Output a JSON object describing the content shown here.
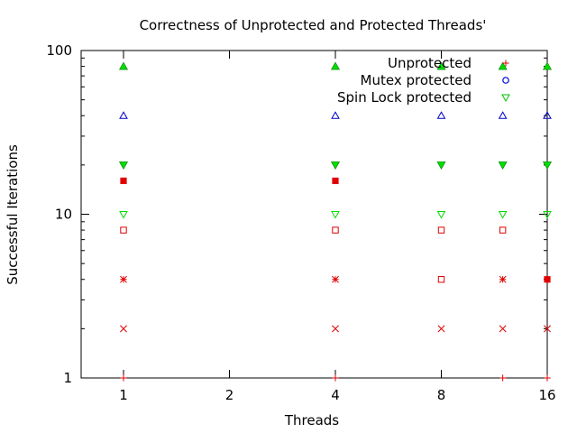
{
  "chart_data": {
    "type": "scatter",
    "title": "Correctness of Unprotected and Protected Threads'",
    "xlabel": "Threads",
    "ylabel": "Successful Iterations",
    "y_scale": "log",
    "ylim": [
      1,
      100
    ],
    "y_ticks": [
      {
        "value": 1,
        "label": "1"
      },
      {
        "value": 10,
        "label": "10"
      },
      {
        "value": 100,
        "label": "100"
      }
    ],
    "xlim": [
      0.6,
      5.0
    ],
    "x_ticks": [
      {
        "pos": 1,
        "label": "1"
      },
      {
        "pos": 2,
        "label": "2"
      },
      {
        "pos": 3,
        "label": "4"
      },
      {
        "pos": 4,
        "label": "8"
      },
      {
        "pos": 5,
        "label": "16"
      }
    ],
    "grid": false,
    "legend_position": "top-right",
    "legend": [
      {
        "label": "Unprotected",
        "marker": "plus",
        "color": "#e00000"
      },
      {
        "label": "Mutex protected",
        "marker": "circle",
        "color": "#0000e0"
      },
      {
        "label": "Spin Lock protected",
        "marker": "triangle-down",
        "color": "#00c000"
      }
    ],
    "points": [
      {
        "x": 1,
        "y": 80,
        "marker": "filled-triangle",
        "color": "#00dd00"
      },
      {
        "x": 1,
        "y": 40,
        "marker": "triangle",
        "color": "#0000cc"
      },
      {
        "x": 1,
        "y": 20,
        "marker": "filled-triangle-down",
        "color": "#00dd00"
      },
      {
        "x": 1,
        "y": 16,
        "marker": "filled-square",
        "color": "#e00000"
      },
      {
        "x": 1,
        "y": 10,
        "marker": "triangle-down",
        "color": "#00dd00"
      },
      {
        "x": 1,
        "y": 8,
        "marker": "square",
        "color": "#e00000"
      },
      {
        "x": 1,
        "y": 4,
        "marker": "star",
        "color": "#e00000"
      },
      {
        "x": 1,
        "y": 2,
        "marker": "cross",
        "color": "#e00000"
      },
      {
        "x": 1,
        "y": 1,
        "marker": "plus",
        "color": "#e00000"
      },
      {
        "x": 3,
        "y": 80,
        "marker": "filled-triangle",
        "color": "#00dd00"
      },
      {
        "x": 3,
        "y": 40,
        "marker": "triangle",
        "color": "#0000cc"
      },
      {
        "x": 3,
        "y": 20,
        "marker": "filled-triangle-down",
        "color": "#00dd00"
      },
      {
        "x": 3,
        "y": 16,
        "marker": "filled-square",
        "color": "#e00000"
      },
      {
        "x": 3,
        "y": 10,
        "marker": "triangle-down",
        "color": "#00dd00"
      },
      {
        "x": 3,
        "y": 8,
        "marker": "square",
        "color": "#e00000"
      },
      {
        "x": 3,
        "y": 4,
        "marker": "star",
        "color": "#e00000"
      },
      {
        "x": 3,
        "y": 2,
        "marker": "cross",
        "color": "#e00000"
      },
      {
        "x": 3,
        "y": 1,
        "marker": "plus",
        "color": "#e00000"
      },
      {
        "x": 4,
        "y": 80,
        "marker": "filled-triangle",
        "color": "#00dd00"
      },
      {
        "x": 4,
        "y": 40,
        "marker": "triangle",
        "color": "#0000cc"
      },
      {
        "x": 4,
        "y": 20,
        "marker": "filled-triangle-down",
        "color": "#00dd00"
      },
      {
        "x": 4,
        "y": 10,
        "marker": "triangle-down",
        "color": "#00dd00"
      },
      {
        "x": 4,
        "y": 8,
        "marker": "square",
        "color": "#e00000"
      },
      {
        "x": 4,
        "y": 4,
        "marker": "square",
        "color": "#e00000"
      },
      {
        "x": 4,
        "y": 2,
        "marker": "cross",
        "color": "#e00000"
      },
      {
        "x": 4.58,
        "y": 80,
        "marker": "filled-triangle",
        "color": "#00dd00"
      },
      {
        "x": 4.58,
        "y": 40,
        "marker": "triangle",
        "color": "#0000cc"
      },
      {
        "x": 4.58,
        "y": 20,
        "marker": "filled-triangle-down",
        "color": "#00dd00"
      },
      {
        "x": 4.58,
        "y": 10,
        "marker": "triangle-down",
        "color": "#00dd00"
      },
      {
        "x": 4.58,
        "y": 8,
        "marker": "square",
        "color": "#e00000"
      },
      {
        "x": 4.58,
        "y": 4,
        "marker": "star",
        "color": "#e00000"
      },
      {
        "x": 4.58,
        "y": 2,
        "marker": "cross",
        "color": "#e00000"
      },
      {
        "x": 4.58,
        "y": 1,
        "marker": "plus",
        "color": "#e00000"
      },
      {
        "x": 5,
        "y": 80,
        "marker": "filled-triangle",
        "color": "#00dd00"
      },
      {
        "x": 5,
        "y": 40,
        "marker": "triangle",
        "color": "#0000cc"
      },
      {
        "x": 5,
        "y": 20,
        "marker": "filled-triangle-down",
        "color": "#00dd00"
      },
      {
        "x": 5,
        "y": 10,
        "marker": "triangle-down",
        "color": "#00dd00"
      },
      {
        "x": 5,
        "y": 4,
        "marker": "filled-square",
        "color": "#e00000"
      },
      {
        "x": 5,
        "y": 2,
        "marker": "cross",
        "color": "#e00000"
      },
      {
        "x": 5,
        "y": 1,
        "marker": "plus",
        "color": "#e00000"
      }
    ]
  }
}
